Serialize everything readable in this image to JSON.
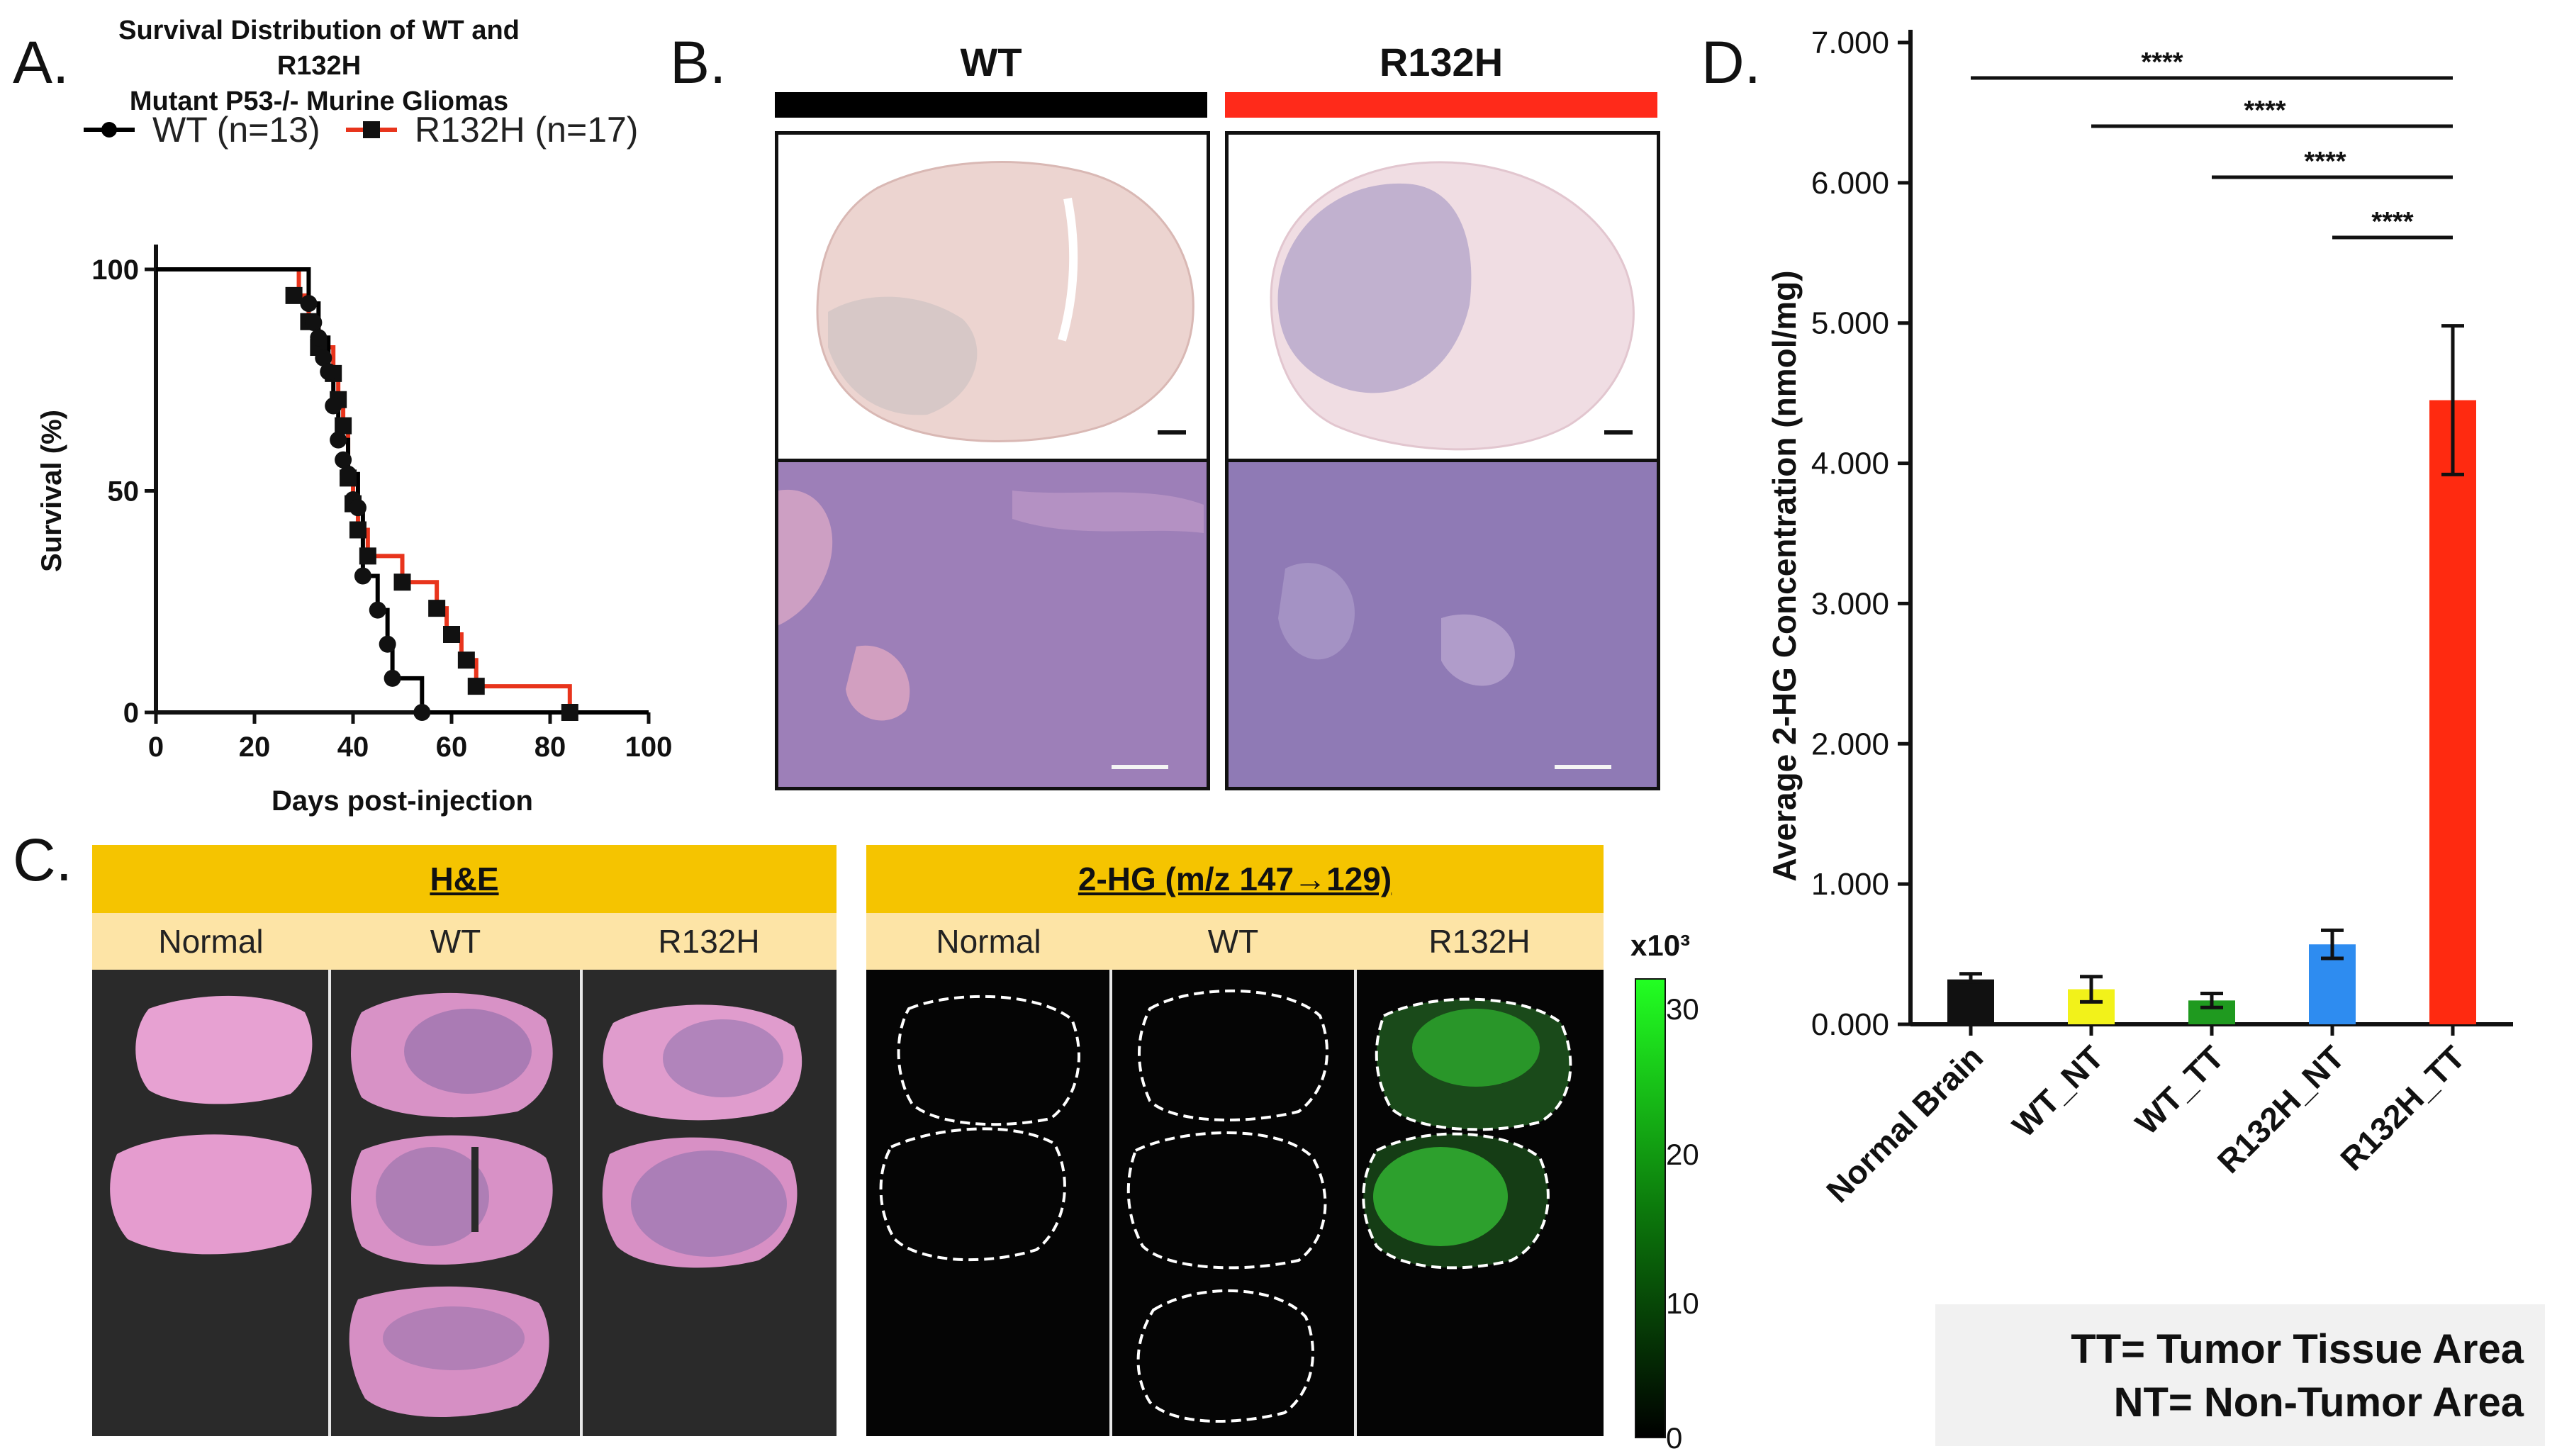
{
  "panels": {
    "A": {
      "letter": "A.",
      "title_line1": "Survival Distribution of WT and R132H",
      "title_line2": "Mutant P53-/- Murine Gliomas",
      "legend": [
        {
          "label": "WT (n=13)",
          "color": "#000000",
          "marker": "circle"
        },
        {
          "label": "R132H (n=17)",
          "color": "#e8341c",
          "marker": "square"
        }
      ]
    },
    "B": {
      "letter": "B.",
      "col_wt": "WT",
      "col_r132h": "R132H",
      "wt_bar_color": "#000000",
      "r132h_bar_color": "#ff2a1a"
    },
    "C": {
      "letter": "C.",
      "he_header": "H&E",
      "hg_header": "2-HG (m/z 147→129)",
      "he_cols": [
        "Normal",
        "WT",
        "R132H"
      ],
      "hg_cols": [
        "Normal",
        "WT",
        "R132H"
      ],
      "colorbar_label": "x10³",
      "colorbar_ticks": [
        "30",
        "20",
        "10",
        "0"
      ]
    },
    "D": {
      "letter": "D.",
      "note_line1": "TT= Tumor Tissue Area",
      "note_line2": "NT= Non-Tumor Area"
    }
  },
  "chart_data": [
    {
      "id": "survival",
      "type": "line",
      "xlabel": "Days post-injection",
      "ylabel": "Survival (%)",
      "xlim": [
        0,
        100
      ],
      "ylim": [
        0,
        100
      ],
      "xticks": [
        0,
        20,
        40,
        60,
        80,
        100
      ],
      "yticks": [
        0,
        50,
        100
      ],
      "series": [
        {
          "name": "WT (n=13)",
          "color": "#000000",
          "marker": "circle",
          "steps": [
            [
              0,
              100
            ],
            [
              31,
              100
            ],
            [
              31,
              92.3
            ],
            [
              33,
              84.6
            ],
            [
              35,
              76.9
            ],
            [
              36,
              69.2
            ],
            [
              37,
              61.5
            ],
            [
              39,
              53.8
            ],
            [
              41,
              46.2
            ],
            [
              42,
              30.8
            ],
            [
              45,
              23.1
            ],
            [
              47,
              15.4
            ],
            [
              48,
              7.7
            ],
            [
              54,
              0
            ],
            [
              100,
              0
            ]
          ],
          "markers": [
            [
              31,
              92.3
            ],
            [
              32,
              88
            ],
            [
              33,
              84.6
            ],
            [
              34,
              80
            ],
            [
              35,
              76.9
            ],
            [
              36,
              69.2
            ],
            [
              37,
              61.5
            ],
            [
              38,
              57
            ],
            [
              39,
              53.8
            ],
            [
              40,
              48
            ],
            [
              41,
              46.2
            ],
            [
              42,
              30.8
            ],
            [
              45,
              23.1
            ],
            [
              47,
              15.4
            ],
            [
              48,
              7.7
            ],
            [
              54,
              0
            ]
          ]
        },
        {
          "name": "R132H (n=17)",
          "color": "#e8341c",
          "marker": "square",
          "steps": [
            [
              0,
              100
            ],
            [
              29,
              100
            ],
            [
              29,
              94.1
            ],
            [
              31,
              88.2
            ],
            [
              33,
              82.4
            ],
            [
              36,
              76.5
            ],
            [
              37,
              70.6
            ],
            [
              38,
              64.7
            ],
            [
              39,
              52.9
            ],
            [
              40,
              47.1
            ],
            [
              41,
              41.2
            ],
            [
              43,
              35.3
            ],
            [
              50,
              29.4
            ],
            [
              57,
              23.5
            ],
            [
              59,
              17.6
            ],
            [
              62,
              11.8
            ],
            [
              65,
              5.9
            ],
            [
              84,
              0
            ]
          ],
          "markers": [
            [
              28,
              94.1
            ],
            [
              31,
              88.2
            ],
            [
              33,
              82.4
            ],
            [
              36,
              76.5
            ],
            [
              37,
              70.6
            ],
            [
              38,
              64.7
            ],
            [
              39,
              52.9
            ],
            [
              40,
              47.1
            ],
            [
              41,
              41.2
            ],
            [
              43,
              35.3
            ],
            [
              50,
              29.4
            ],
            [
              57,
              23.5
            ],
            [
              60,
              17.6
            ],
            [
              63,
              11.8
            ],
            [
              65,
              5.9
            ],
            [
              84,
              0
            ]
          ]
        }
      ]
    },
    {
      "id": "2hg-concentration",
      "type": "bar",
      "ylabel": "Average 2-HG Concentration (nmol/mg)",
      "ylim": [
        0,
        7
      ],
      "yticks": [
        "0.000",
        "1.000",
        "2.000",
        "3.000",
        "4.000",
        "5.000",
        "6.000",
        "7.000"
      ],
      "categories": [
        "Normal Brain",
        "WT_NT",
        "WT_TT",
        "R132H_NT",
        "R132H_TT"
      ],
      "values": [
        0.32,
        0.25,
        0.17,
        0.57,
        4.45
      ],
      "errors": [
        0.04,
        0.09,
        0.05,
        0.1,
        0.53
      ],
      "colors": [
        "#111111",
        "#f2f21a",
        "#1f9a1f",
        "#2e8cf0",
        "#ff2a10"
      ],
      "significance": [
        {
          "from": "Normal Brain",
          "to": "R132H_TT",
          "label": "****"
        },
        {
          "from": "WT_NT",
          "to": "R132H_TT",
          "label": "****"
        },
        {
          "from": "WT_TT",
          "to": "R132H_TT",
          "label": "****"
        },
        {
          "from": "R132H_NT",
          "to": "R132H_TT",
          "label": "****"
        }
      ]
    }
  ]
}
